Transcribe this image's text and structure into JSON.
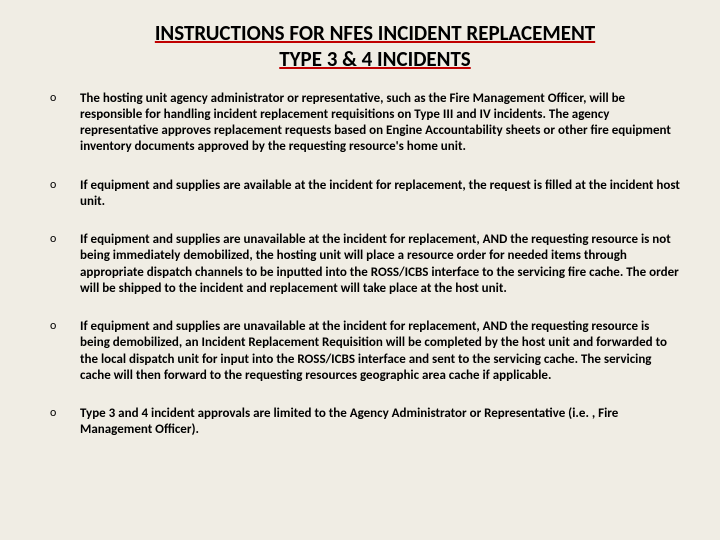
{
  "title": {
    "line1": "INSTRUCTIONS FOR NFES INCIDENT REPLACEMENT",
    "line2": "TYPE 3 & 4 INCIDENTS"
  },
  "bullets": [
    "The hosting unit agency administrator or representative, such as the Fire Management Officer, will be responsible for handling incident replacement requisitions on Type III and IV incidents. The agency representative approves replacement requests based on Engine Accountability sheets or other fire equipment inventory documents approved by the requesting resource's home unit.",
    "If equipment and supplies are available at the incident for replacement, the request is filled at the incident host unit.",
    " If equipment and supplies are unavailable at the incident for replacement, AND the requesting resource is not being immediately demobilized, the hosting unit will place a resource order for needed items through appropriate dispatch channels to be inputted into the ROSS/ICBS interface to the servicing fire cache. The order will be shipped to the incident and replacement will take place at the host unit.",
    " If equipment and supplies are unavailable at the incident for replacement, AND the requesting resource is being demobilized, an Incident Replacement Requisition will be completed by the host unit and forwarded to the local dispatch unit for input into the ROSS/ICBS interface and sent to the servicing cache. The servicing cache will then forward to the requesting resources geographic area cache if applicable.",
    " Type 3 and 4 incident approvals are limited to the Agency Administrator or Representative (i.e. , Fire Management Officer)."
  ],
  "styling": {
    "background_color": "#f0ede4",
    "text_color": "#000000",
    "underline_color": "#c00000",
    "title_fontsize": 21,
    "body_fontsize": 13,
    "font_family": "Calibri, Arial, sans-serif"
  }
}
